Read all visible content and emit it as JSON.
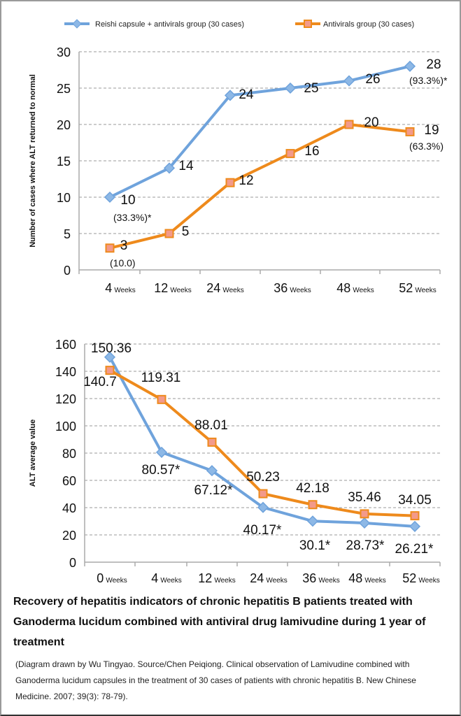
{
  "chart_data": [
    {
      "type": "line",
      "title": "",
      "xlabel": "",
      "ylabel": "Number of cases where ALT returned to normal",
      "ylim": [
        0,
        30
      ],
      "yticks": [
        0,
        5,
        10,
        15,
        20,
        25,
        30
      ],
      "grid": true,
      "legend_position": "top",
      "categories": [
        {
          "num": "4",
          "unit": "Weeks"
        },
        {
          "num": "12",
          "unit": "Weeks"
        },
        {
          "num": "24",
          "unit": "Weeks"
        },
        {
          "num": "36",
          "unit": "Weeks"
        },
        {
          "num": "48",
          "unit": "Weeks"
        },
        {
          "num": "52",
          "unit": "Weeks"
        }
      ],
      "series": [
        {
          "name": "Reishi capsule + antivirals group (30 cases)",
          "color": "#6fa3dc",
          "marker": "diamond",
          "values": [
            10,
            14,
            24,
            25,
            26,
            28
          ],
          "labels": [
            "10",
            "14",
            "24",
            "25",
            "26",
            "28"
          ],
          "annotations": [
            "(33.3%)*",
            "",
            "",
            "",
            "",
            "(93.3%)*"
          ]
        },
        {
          "name": "Antivirals group (30 cases)",
          "color": "#ee8a1c",
          "marker": "square",
          "values": [
            3,
            5,
            12,
            16,
            20,
            19
          ],
          "labels": [
            "3",
            "5",
            "12",
            "16",
            "20",
            "19"
          ],
          "annotations": [
            "(10.0)",
            "",
            "",
            "",
            "",
            "(63.3%)"
          ]
        }
      ]
    },
    {
      "type": "line",
      "title": "",
      "xlabel": "",
      "ylabel": "ALT average value",
      "ylim": [
        0,
        160
      ],
      "yticks": [
        0,
        20,
        40,
        60,
        80,
        100,
        120,
        140,
        160
      ],
      "grid": true,
      "categories": [
        {
          "num": "0",
          "unit": "Weeks"
        },
        {
          "num": "4",
          "unit": "Weeks"
        },
        {
          "num": "12",
          "unit": "Weeks"
        },
        {
          "num": "24",
          "unit": "Weeks"
        },
        {
          "num": "36",
          "unit": "Weeks"
        },
        {
          "num": "48",
          "unit": "Weeks"
        },
        {
          "num": "52",
          "unit": "Weeks"
        }
      ],
      "series": [
        {
          "name": "Reishi capsule + antivirals group (30 cases)",
          "color": "#6fa3dc",
          "marker": "diamond",
          "values": [
            150.36,
            80.57,
            67.12,
            40.17,
            30.1,
            28.73,
            26.21
          ],
          "labels": [
            "150.36",
            "80.57*",
            "67.12*",
            "40.17*",
            "30.1*",
            "28.73*",
            "26.21*"
          ]
        },
        {
          "name": "Antivirals group (30 cases)",
          "color": "#ee8a1c",
          "marker": "square",
          "values": [
            140.7,
            119.31,
            88.01,
            50.23,
            42.18,
            35.46,
            34.05
          ],
          "labels": [
            "140.7",
            "119.31",
            "88.01",
            "50.23",
            "42.18",
            "35.46",
            "34.05"
          ]
        }
      ]
    }
  ],
  "caption": "Recovery of hepatitis indicators of chronic hepatitis B patients treated with Ganoderma lucidum combined with antiviral drug lamivudine during 1 year of treatment",
  "source": "(Diagram drawn by Wu Tingyao. Source/Chen Peiqiong. Clinical observation of Lamivudine combined with Ganoderma lucidum capsules in the treatment of 30 cases of patients with chronic hepatitis B. New Chinese Medicine. 2007; 39(3): 78-79)."
}
